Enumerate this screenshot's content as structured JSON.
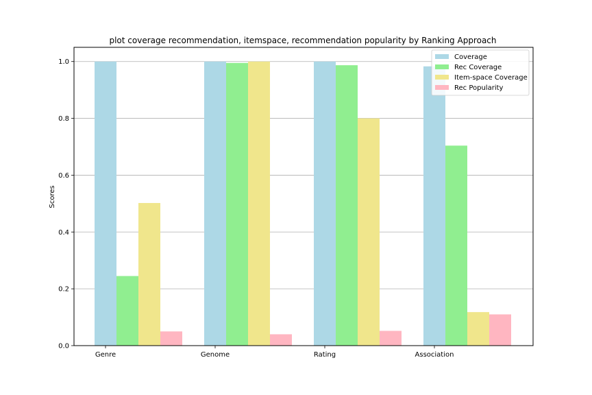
{
  "chart_data": {
    "type": "bar",
    "title": "plot coverage recommendation, itemspace,  recommendation popularity by Ranking Approach",
    "xlabel": "",
    "ylabel": "Scores",
    "categories": [
      "Genre",
      "Genome",
      "Rating",
      "Association"
    ],
    "series": [
      {
        "name": "Coverage",
        "color": "#add8e6",
        "values": [
          1.0,
          1.0,
          1.0,
          0.983
        ]
      },
      {
        "name": "Rec Coverage",
        "color": "#90ee90",
        "values": [
          0.245,
          0.995,
          0.987,
          0.704
        ]
      },
      {
        "name": "Item-space Coverage",
        "color": "#f0e68c",
        "values": [
          0.502,
          1.0,
          0.8,
          0.118
        ]
      },
      {
        "name": "Rec Popularity",
        "color": "#ffb6c1",
        "values": [
          0.05,
          0.04,
          0.052,
          0.11
        ]
      }
    ],
    "ylim": [
      0,
      1.05
    ],
    "yticks": [
      "0.0",
      "0.2",
      "0.4",
      "0.6",
      "0.8",
      "1.0"
    ],
    "grid": "horizontal",
    "legend_position": "top-right"
  }
}
